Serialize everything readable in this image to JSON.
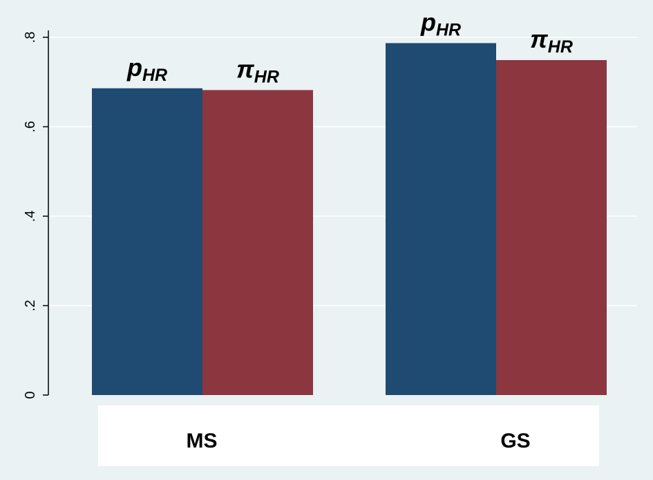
{
  "chart_data": {
    "type": "bar",
    "categories": [
      "MS",
      "GS"
    ],
    "series": [
      {
        "label_base": "p",
        "label_sub": "HR",
        "color": "#1f4a72",
        "values": [
          0.686,
          0.787
        ]
      },
      {
        "label_base": "π",
        "label_sub": "HR",
        "color": "#8c3640",
        "values": [
          0.682,
          0.749
        ]
      }
    ],
    "y_ticks": [
      {
        "value": 0,
        "label": "0"
      },
      {
        "value": 0.2,
        "label": ".2"
      },
      {
        "value": 0.4,
        "label": ".4"
      },
      {
        "value": 0.6,
        "label": ".6"
      },
      {
        "value": 0.8,
        "label": ".8"
      }
    ],
    "ylim": [
      0,
      0.8
    ],
    "grid": true,
    "legend": "none",
    "colors": {
      "background": "#eaf2f3",
      "grid": "#ffffff",
      "axis": "#000000"
    }
  }
}
